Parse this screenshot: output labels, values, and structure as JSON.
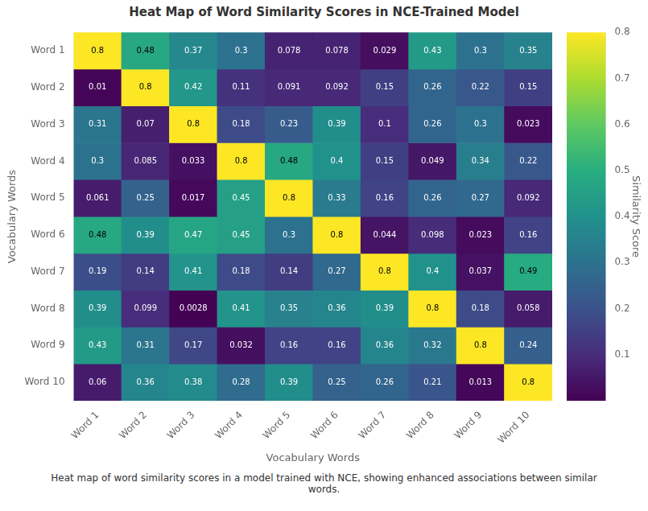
{
  "chart_data": {
    "type": "heatmap",
    "title": "Heat Map of Word Similarity Scores in NCE-Trained Model",
    "xlabel": "Vocabulary Words",
    "ylabel": "Vocabulary Words",
    "caption": "Heat map of word similarity scores in a model trained with NCE, showing enhanced associations between similar\nwords.",
    "categories": [
      "Word 1",
      "Word 2",
      "Word 3",
      "Word 4",
      "Word 5",
      "Word 6",
      "Word 7",
      "Word 8",
      "Word 9",
      "Word 10"
    ],
    "matrix": [
      [
        0.8,
        0.48,
        0.37,
        0.3,
        0.078,
        0.078,
        0.029,
        0.43,
        0.3,
        0.35
      ],
      [
        0.01,
        0.8,
        0.42,
        0.11,
        0.091,
        0.092,
        0.15,
        0.26,
        0.22,
        0.15
      ],
      [
        0.31,
        0.07,
        0.8,
        0.18,
        0.23,
        0.39,
        0.1,
        0.26,
        0.3,
        0.023
      ],
      [
        0.3,
        0.085,
        0.033,
        0.8,
        0.48,
        0.4,
        0.15,
        0.049,
        0.34,
        0.22
      ],
      [
        0.061,
        0.25,
        0.017,
        0.45,
        0.8,
        0.33,
        0.16,
        0.26,
        0.27,
        0.092
      ],
      [
        0.48,
        0.39,
        0.47,
        0.45,
        0.3,
        0.8,
        0.044,
        0.098,
        0.023,
        0.16
      ],
      [
        0.19,
        0.14,
        0.41,
        0.18,
        0.14,
        0.27,
        0.8,
        0.4,
        0.037,
        0.49
      ],
      [
        0.39,
        0.099,
        0.0028,
        0.41,
        0.35,
        0.36,
        0.39,
        0.8,
        0.18,
        0.058
      ],
      [
        0.43,
        0.31,
        0.17,
        0.032,
        0.16,
        0.16,
        0.36,
        0.32,
        0.8,
        0.24
      ],
      [
        0.06,
        0.36,
        0.38,
        0.28,
        0.39,
        0.25,
        0.26,
        0.21,
        0.013,
        0.8
      ]
    ],
    "colorbar": {
      "label": "Similarity Score",
      "range": [
        0.0,
        0.8
      ],
      "ticks": [
        0.1,
        0.2,
        0.3,
        0.4,
        0.5,
        0.6,
        0.7,
        0.8
      ]
    },
    "color": "viridis",
    "data_labels": true,
    "grid": false
  }
}
